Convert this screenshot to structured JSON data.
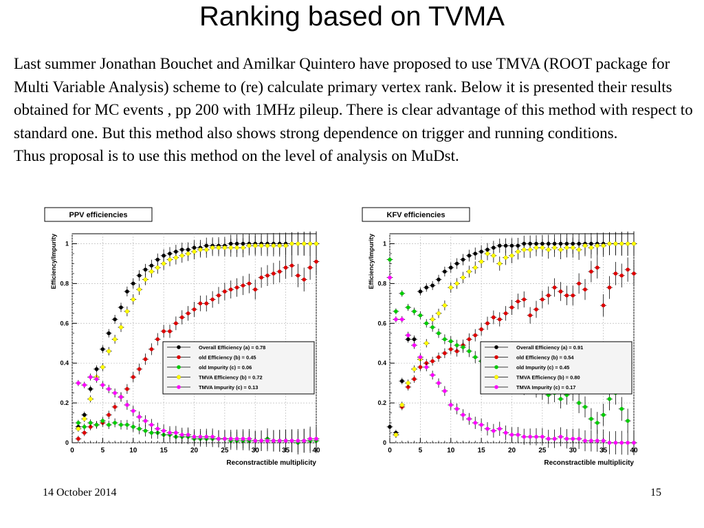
{
  "slide": {
    "title": "Ranking based on TVMA",
    "paragraph1": "Last summer Jonathan Bouchet and Amilkar Quintero have proposed to use TMVA (ROOT package for Multi Variable Analysis) scheme to (re) calculate primary vertex rank.  Below it is presented their results obtained for MC events , pp 200 with 1MHz pileup. There is clear advantage of this method with respect to standard one.  But this method also shows strong dependence on trigger and running conditions.",
    "paragraph2": "Thus proposal is to use this method on the level of analysis on MuDst.",
    "footer_date": "14 October 2014",
    "page_number": "15"
  },
  "chart_data": [
    {
      "type": "scatter",
      "title": "PPV efficiencies",
      "xlabel": "Reconstractible multiplicity",
      "ylabel": "Efficiency/Impurity",
      "xlim": [
        0,
        40
      ],
      "ylim": [
        0,
        1.05
      ],
      "xticks": [
        "0",
        "5",
        "10",
        "15",
        "20",
        "25",
        "30",
        "35",
        "40"
      ],
      "yticks": [
        "0",
        "0.2",
        "0.4",
        "0.6",
        "0.8",
        "1"
      ],
      "grid": true,
      "legend_position": "center-right",
      "series": [
        {
          "name": "Overall Efficiency (a) = 0.78",
          "color": "#000000",
          "x": [
            1,
            2,
            3,
            4,
            5,
            6,
            7,
            8,
            9,
            10,
            11,
            12,
            13,
            14,
            15,
            16,
            17,
            18,
            19,
            20,
            21,
            22,
            23,
            24,
            25,
            26,
            27,
            28,
            29,
            30,
            31,
            32,
            33,
            34,
            35,
            36,
            37,
            38,
            39,
            40
          ],
          "y": [
            0.08,
            0.14,
            0.27,
            0.37,
            0.47,
            0.55,
            0.62,
            0.68,
            0.76,
            0.8,
            0.84,
            0.87,
            0.89,
            0.92,
            0.94,
            0.95,
            0.96,
            0.97,
            0.97,
            0.98,
            0.98,
            0.99,
            0.99,
            0.99,
            0.99,
            1.0,
            1.0,
            1.0,
            1.0,
            1.0,
            1.0,
            1.0,
            1.0,
            1.0,
            1.0,
            1.0,
            1.0,
            1.0,
            1.0,
            1.0
          ]
        },
        {
          "name": "old Efficiency (b) = 0.45",
          "color": "#dd0000",
          "x": [
            1,
            2,
            3,
            4,
            5,
            6,
            7,
            8,
            9,
            10,
            11,
            12,
            13,
            14,
            15,
            16,
            17,
            18,
            19,
            20,
            21,
            22,
            23,
            24,
            25,
            26,
            27,
            28,
            29,
            30,
            31,
            32,
            33,
            34,
            35,
            36,
            37,
            38,
            39,
            40
          ],
          "y": [
            0.02,
            0.05,
            0.08,
            0.09,
            0.1,
            0.14,
            0.18,
            0.23,
            0.27,
            0.33,
            0.37,
            0.42,
            0.47,
            0.52,
            0.56,
            0.56,
            0.6,
            0.63,
            0.65,
            0.67,
            0.7,
            0.7,
            0.72,
            0.74,
            0.76,
            0.77,
            0.78,
            0.79,
            0.8,
            0.77,
            0.83,
            0.84,
            0.85,
            0.86,
            0.88,
            0.89,
            0.84,
            0.82,
            0.88,
            0.91
          ]
        },
        {
          "name": "old Impurity (c) = 0.06",
          "color": "#00cc00",
          "x": [
            1,
            2,
            3,
            4,
            5,
            6,
            7,
            8,
            9,
            10,
            11,
            12,
            13,
            14,
            15,
            16,
            17,
            18,
            19,
            20,
            21,
            22,
            23,
            24,
            25,
            26,
            27,
            28,
            29,
            30,
            31,
            32,
            33,
            34,
            35,
            36,
            37,
            38,
            39,
            40
          ],
          "y": [
            0.1,
            0.08,
            0.1,
            0.09,
            0.11,
            0.09,
            0.1,
            0.09,
            0.09,
            0.08,
            0.07,
            0.06,
            0.05,
            0.05,
            0.04,
            0.04,
            0.03,
            0.03,
            0.03,
            0.02,
            0.02,
            0.02,
            0.02,
            0.02,
            0.02,
            0.01,
            0.01,
            0.01,
            0.01,
            0.01,
            0.01,
            0.02,
            0.01,
            0.01,
            0.01,
            0.01,
            0.0,
            0.01,
            0.01,
            0.01
          ]
        },
        {
          "name": "TMVA Efficiency (b) = 0.72",
          "color": "#ffff00",
          "x": [
            1,
            2,
            3,
            4,
            5,
            6,
            7,
            8,
            9,
            10,
            11,
            12,
            13,
            14,
            15,
            16,
            17,
            18,
            19,
            20,
            21,
            22,
            23,
            24,
            25,
            26,
            27,
            28,
            29,
            30,
            31,
            32,
            33,
            34,
            35,
            36,
            37,
            38,
            39,
            40
          ],
          "y": [
            0.07,
            0.12,
            0.22,
            0.33,
            0.38,
            0.46,
            0.52,
            0.58,
            0.66,
            0.72,
            0.77,
            0.82,
            0.86,
            0.88,
            0.9,
            0.92,
            0.93,
            0.94,
            0.95,
            0.96,
            0.97,
            0.97,
            0.98,
            0.98,
            0.98,
            0.98,
            0.98,
            0.98,
            0.99,
            0.99,
            0.99,
            0.99,
            0.99,
            0.99,
            0.99,
            1.0,
            1.0,
            1.0,
            1.0,
            1.0
          ]
        },
        {
          "name": "TMVA Impurity (c) = 0.13",
          "color": "#ff00ff",
          "x": [
            1,
            2,
            3,
            4,
            5,
            6,
            7,
            8,
            9,
            10,
            11,
            12,
            13,
            14,
            15,
            16,
            17,
            18,
            19,
            20,
            21,
            22,
            23,
            24,
            25,
            26,
            27,
            28,
            29,
            30,
            31,
            32,
            33,
            34,
            35,
            36,
            37,
            38,
            39,
            40
          ],
          "y": [
            0.3,
            0.29,
            0.33,
            0.32,
            0.29,
            0.27,
            0.25,
            0.23,
            0.19,
            0.16,
            0.13,
            0.11,
            0.09,
            0.07,
            0.06,
            0.05,
            0.05,
            0.04,
            0.04,
            0.03,
            0.03,
            0.03,
            0.03,
            0.02,
            0.02,
            0.02,
            0.02,
            0.02,
            0.02,
            0.01,
            0.01,
            0.01,
            0.01,
            0.01,
            0.01,
            0.01,
            0.01,
            0.01,
            0.02,
            0.02
          ]
        }
      ]
    },
    {
      "type": "scatter",
      "title": "KFV efficiencies",
      "xlabel": "Reconstractible multiplicity",
      "ylabel": "Efficiency/Impurity",
      "xlim": [
        0,
        40
      ],
      "ylim": [
        0,
        1.05
      ],
      "xticks": [
        "0",
        "5",
        "10",
        "15",
        "20",
        "25",
        "30",
        "35",
        "40"
      ],
      "yticks": [
        "0",
        "0.2",
        "0.4",
        "0.6",
        "0.8",
        "1"
      ],
      "grid": true,
      "legend_position": "center-right",
      "series": [
        {
          "name": "Overall Efficiency (a) = 0.91",
          "color": "#000000",
          "x": [
            0,
            1,
            2,
            3,
            4,
            5,
            6,
            7,
            8,
            9,
            10,
            11,
            12,
            13,
            14,
            15,
            16,
            17,
            18,
            19,
            20,
            21,
            22,
            23,
            24,
            25,
            26,
            27,
            28,
            29,
            30,
            31,
            32,
            33,
            34,
            35,
            36,
            37,
            38,
            39,
            40
          ],
          "y": [
            0.08,
            0.05,
            0.31,
            0.52,
            0.52,
            0.76,
            0.78,
            0.79,
            0.82,
            0.86,
            0.88,
            0.9,
            0.92,
            0.94,
            0.95,
            0.96,
            0.97,
            0.98,
            0.99,
            0.99,
            0.99,
            0.99,
            1.0,
            1.0,
            1.0,
            1.0,
            1.0,
            1.0,
            1.0,
            1.0,
            1.0,
            1.0,
            1.0,
            1.0,
            1.0,
            1.0,
            1.0,
            1.0,
            1.0,
            1.0,
            1.0
          ]
        },
        {
          "name": "old Efficiency (b) = 0.54",
          "color": "#dd0000",
          "x": [
            1,
            2,
            3,
            4,
            5,
            6,
            7,
            8,
            9,
            10,
            11,
            12,
            13,
            14,
            15,
            16,
            17,
            18,
            19,
            20,
            21,
            22,
            23,
            24,
            25,
            26,
            27,
            28,
            29,
            30,
            31,
            32,
            33,
            34,
            35,
            36,
            37,
            38,
            39,
            40
          ],
          "y": [
            0.04,
            0.18,
            0.28,
            0.32,
            0.38,
            0.4,
            0.41,
            0.43,
            0.45,
            0.47,
            0.46,
            0.49,
            0.52,
            0.54,
            0.57,
            0.6,
            0.63,
            0.62,
            0.65,
            0.68,
            0.71,
            0.72,
            0.64,
            0.67,
            0.72,
            0.74,
            0.78,
            0.76,
            0.74,
            0.74,
            0.8,
            0.77,
            0.86,
            0.88,
            0.69,
            0.78,
            0.85,
            0.84,
            0.87,
            0.85
          ]
        },
        {
          "name": "old Impurity (c) = 0.45",
          "color": "#00cc00",
          "x": [
            0,
            1,
            2,
            3,
            4,
            5,
            6,
            7,
            8,
            9,
            10,
            11,
            12,
            13,
            14,
            15,
            16,
            17,
            18,
            19,
            20,
            21,
            22,
            23,
            24,
            25,
            26,
            27,
            28,
            29,
            30,
            31,
            32,
            33,
            34,
            35,
            36,
            37,
            38,
            39,
            40
          ],
          "y": [
            0.92,
            0.66,
            0.75,
            0.68,
            0.66,
            0.64,
            0.6,
            0.58,
            0.55,
            0.52,
            0.51,
            0.49,
            0.48,
            0.46,
            0.43,
            0.41,
            0.39,
            0.37,
            0.36,
            0.35,
            0.32,
            0.3,
            0.28,
            0.29,
            0.27,
            0.26,
            0.24,
            0.25,
            0.22,
            0.24,
            0.26,
            0.2,
            0.18,
            0.12,
            0.1,
            0.14,
            0.22,
            0.25,
            0.17,
            0.11,
            0.0
          ]
        },
        {
          "name": "TMVA Efficiency (b) = 0.80",
          "color": "#ffff00",
          "x": [
            1,
            2,
            3,
            4,
            5,
            6,
            7,
            8,
            9,
            10,
            11,
            12,
            13,
            14,
            15,
            16,
            17,
            18,
            19,
            20,
            21,
            22,
            23,
            24,
            25,
            26,
            27,
            28,
            29,
            30,
            31,
            32,
            33,
            34,
            35,
            36,
            37,
            38,
            39,
            40
          ],
          "y": [
            0.04,
            0.19,
            0.3,
            0.37,
            0.42,
            0.5,
            0.62,
            0.65,
            0.69,
            0.78,
            0.8,
            0.83,
            0.86,
            0.88,
            0.91,
            0.95,
            0.94,
            0.9,
            0.93,
            0.94,
            0.96,
            0.97,
            0.97,
            0.98,
            0.98,
            0.97,
            0.98,
            0.97,
            0.98,
            0.98,
            0.97,
            0.99,
            0.98,
            0.99,
            0.99,
            1.0,
            1.0,
            1.0,
            1.0,
            1.0
          ]
        },
        {
          "name": "TMVA Impurity (c) = 0.17",
          "color": "#ff00ff",
          "x": [
            0,
            1,
            2,
            3,
            4,
            5,
            6,
            7,
            8,
            9,
            10,
            11,
            12,
            13,
            14,
            15,
            16,
            17,
            18,
            19,
            20,
            21,
            22,
            23,
            24,
            25,
            26,
            27,
            28,
            29,
            30,
            31,
            32,
            33,
            34,
            35,
            36,
            37,
            38,
            39,
            40
          ],
          "y": [
            0.83,
            0.62,
            0.62,
            0.54,
            0.49,
            0.43,
            0.38,
            0.34,
            0.3,
            0.26,
            0.19,
            0.17,
            0.14,
            0.12,
            0.1,
            0.09,
            0.07,
            0.06,
            0.07,
            0.05,
            0.04,
            0.04,
            0.03,
            0.03,
            0.03,
            0.03,
            0.02,
            0.02,
            0.03,
            0.02,
            0.02,
            0.02,
            0.01,
            0.01,
            0.01,
            0.01,
            0.0,
            0.0,
            0.0,
            0.0,
            0.0
          ]
        }
      ]
    }
  ]
}
